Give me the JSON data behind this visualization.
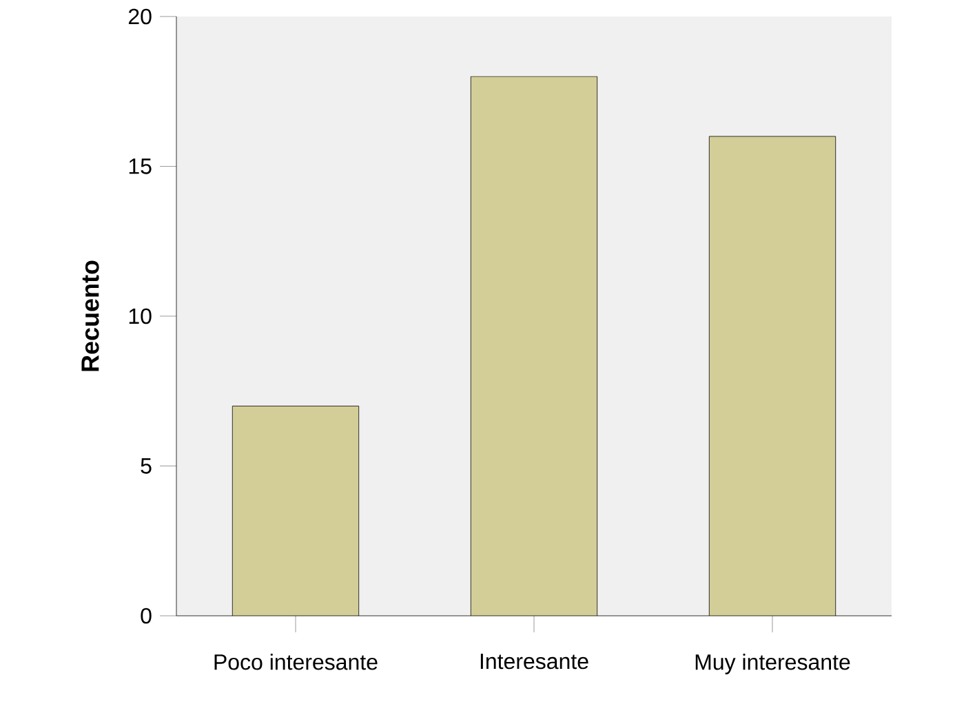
{
  "chart_data": {
    "type": "bar",
    "ylabel": "Recuento",
    "categories": [
      "Poco interesante",
      "Interesante",
      "Muy interesante"
    ],
    "values": [
      7,
      18,
      16
    ],
    "color": "#d3ce97",
    "ylim": [
      0,
      20
    ],
    "yticks": [
      0,
      5,
      10,
      15,
      20
    ]
  }
}
